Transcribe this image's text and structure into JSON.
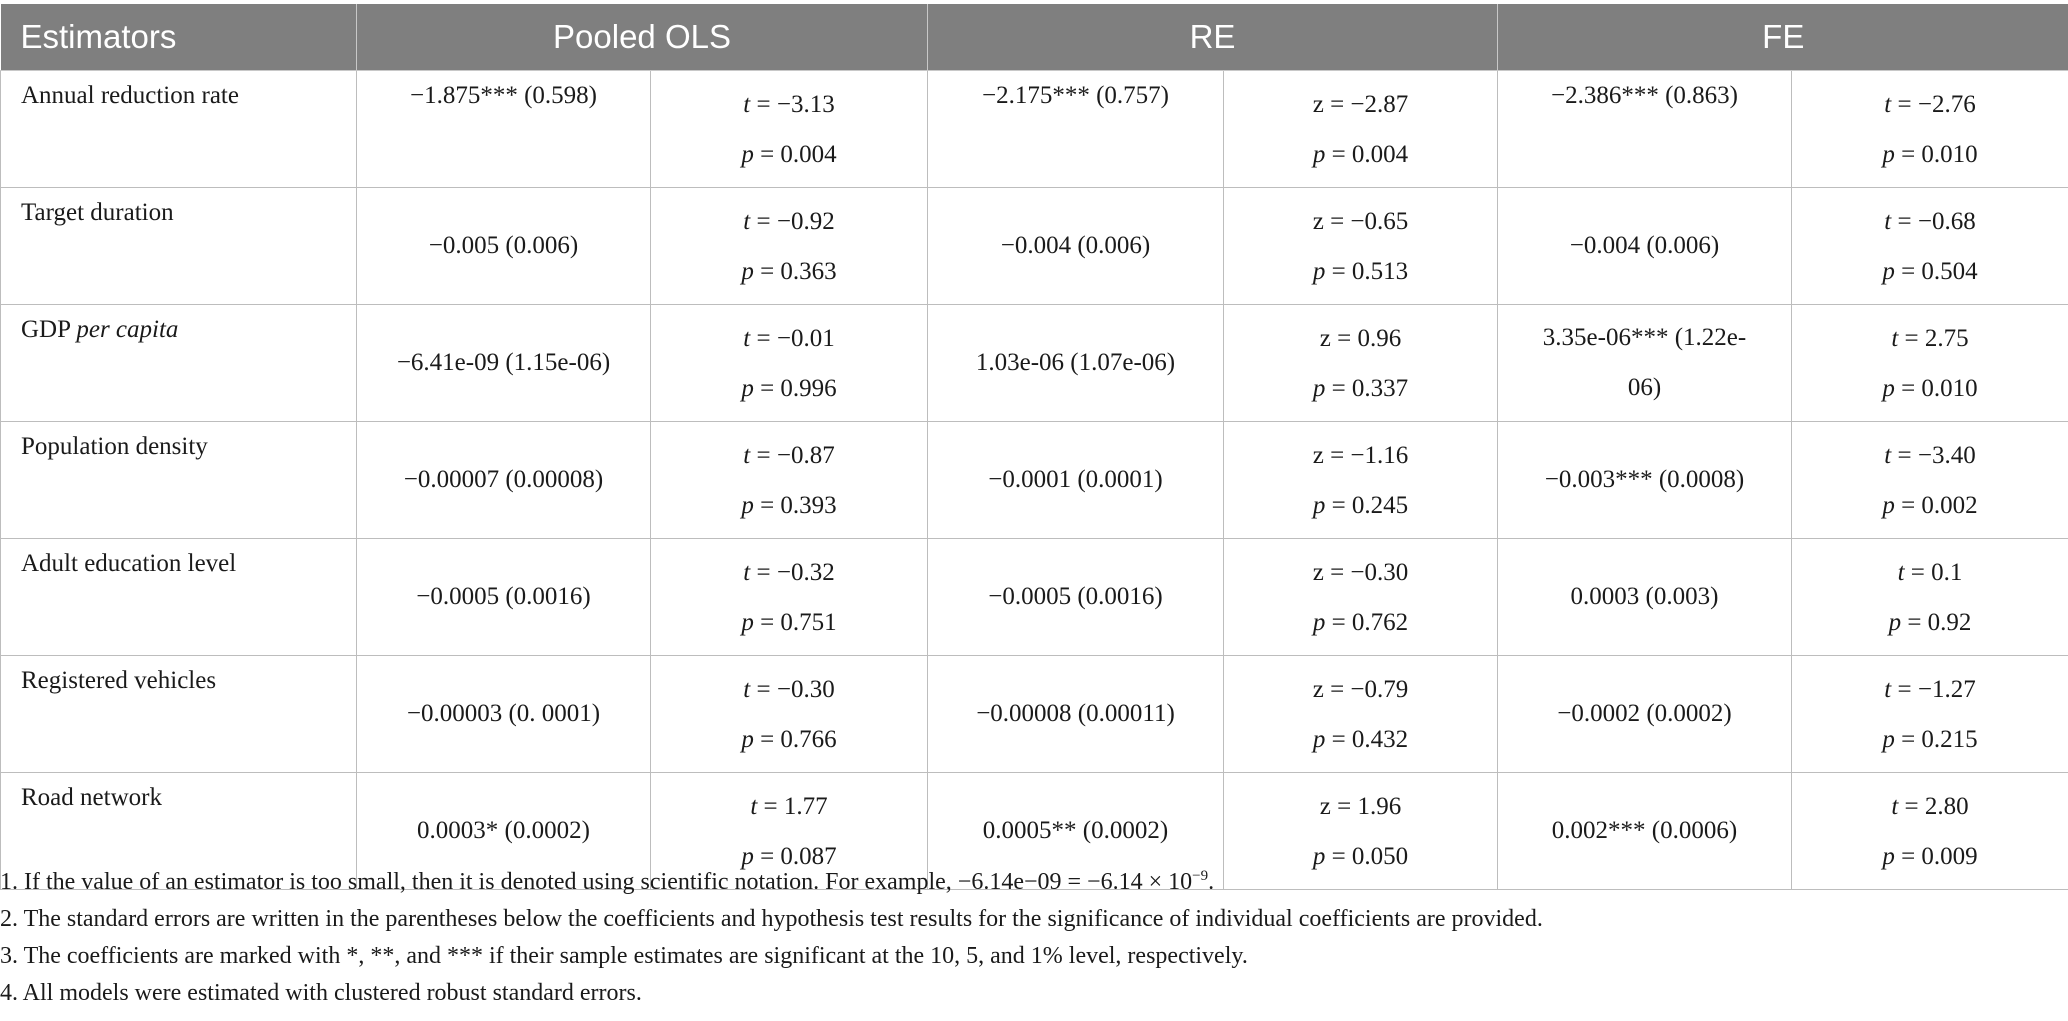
{
  "header": {
    "estimators": "Estimators",
    "pooled": "Pooled OLS",
    "re": "RE",
    "fe": "FE"
  },
  "rows": [
    {
      "label_pre": "Annual reduction rate",
      "label_italic": "",
      "label_post": "",
      "ols_coef": "−1.875*** (0.598)",
      "ols_stat_sym": "t",
      "ols_stat": " = −3.13",
      "ols_p": " = 0.004",
      "re_coef": "−2.175*** (0.757)",
      "re_stat_sym": "z",
      "re_stat": " = −2.87",
      "re_p": " = 0.004",
      "fe_coef": "−2.386*** (0.863)",
      "fe_stat_sym": "t",
      "fe_stat": " = −2.76",
      "fe_p": " = 0.010"
    },
    {
      "label_pre": "Target duration",
      "label_italic": "",
      "label_post": "",
      "ols_coef": "−0.005 (0.006)",
      "ols_stat_sym": "t",
      "ols_stat": " = −0.92",
      "ols_p": " = 0.363",
      "re_coef": "−0.004 (0.006)",
      "re_stat_sym": "z",
      "re_stat": " = −0.65",
      "re_p": " = 0.513",
      "fe_coef": "−0.004 (0.006)",
      "fe_stat_sym": "t",
      "fe_stat": " = −0.68",
      "fe_p": " = 0.504"
    },
    {
      "label_pre": "GDP ",
      "label_italic": "per capita",
      "label_post": "",
      "ols_coef": "−6.41e-09 (1.15e-06)",
      "ols_stat_sym": "t",
      "ols_stat": " = −0.01",
      "ols_p": " = 0.996",
      "re_coef": "1.03e-06 (1.07e-06)",
      "re_stat_sym": "z",
      "re_stat": " = 0.96",
      "re_p": " = 0.337",
      "fe_coef_line1": "3.35e-06*** (1.22e-",
      "fe_coef_line2": "06)",
      "fe_stat_sym": "t",
      "fe_stat": " = 2.75",
      "fe_p": " = 0.010"
    },
    {
      "label_pre": "Population density",
      "label_italic": "",
      "label_post": "",
      "ols_coef": "−0.00007 (0.00008)",
      "ols_stat_sym": "t",
      "ols_stat": " = −0.87",
      "ols_p": " = 0.393",
      "re_coef": "−0.0001 (0.0001)",
      "re_stat_sym": "z",
      "re_stat": " = −1.16",
      "re_p": " = 0.245",
      "fe_coef": "−0.003*** (0.0008)",
      "fe_stat_sym": "t",
      "fe_stat": " = −3.40",
      "fe_p": " = 0.002"
    },
    {
      "label_pre": "Adult education level",
      "label_italic": "",
      "label_post": "",
      "ols_coef": "−0.0005 (0.0016)",
      "ols_stat_sym": "t",
      "ols_stat": " = −0.32",
      "ols_p": " = 0.751",
      "re_coef": "−0.0005 (0.0016)",
      "re_stat_sym": "z",
      "re_stat": " = −0.30",
      "re_p": " = 0.762",
      "fe_coef": "0.0003 (0.003)",
      "fe_stat_sym": "t",
      "fe_stat": " = 0.1",
      "fe_p": " = 0.92"
    },
    {
      "label_pre": "Registered vehicles",
      "label_italic": "",
      "label_post": "",
      "ols_coef": "−0.00003 (0. 0001)",
      "ols_stat_sym": "t",
      "ols_stat": " = −0.30",
      "ols_p": " = 0.766",
      "re_coef": "−0.00008 (0.00011)",
      "re_stat_sym": "z",
      "re_stat": " = −0.79",
      "re_p": " = 0.432",
      "fe_coef": "−0.0002 (0.0002)",
      "fe_stat_sym": "t",
      "fe_stat": " = −1.27",
      "fe_p": " = 0.215"
    },
    {
      "label_pre": "Road network",
      "label_italic": "",
      "label_post": "",
      "ols_coef": "0.0003* (0.0002)",
      "ols_stat_sym": "t",
      "ols_stat": " = 1.77",
      "ols_p": " = 0.087",
      "re_coef": "0.0005** (0.0002)",
      "re_stat_sym": "z",
      "re_stat": " = 1.96",
      "re_p": " = 0.050",
      "fe_coef": "0.002*** (0.0006)",
      "fe_stat_sym": "t",
      "fe_stat": " = 2.80",
      "fe_p": " = 0.009"
    }
  ],
  "p_symbol": "p",
  "notes": {
    "n1_pre": "1. If the value of an estimator is too small, then it is denoted using scientific notation. For example, −6.14e−09 = −6.14 × 10",
    "n1_sup": "−9",
    "n1_post": ".",
    "n2": "2. The standard errors are written in the parentheses below the coefficients and hypothesis test results for the significance of individual coefficients are provided.",
    "n3": "3. The coefficients are marked with *, **, and *** if their sample estimates are significant at the 10, 5, and 1% level, respectively.",
    "n4": "4. All models were estimated with clustered robust standard errors."
  }
}
